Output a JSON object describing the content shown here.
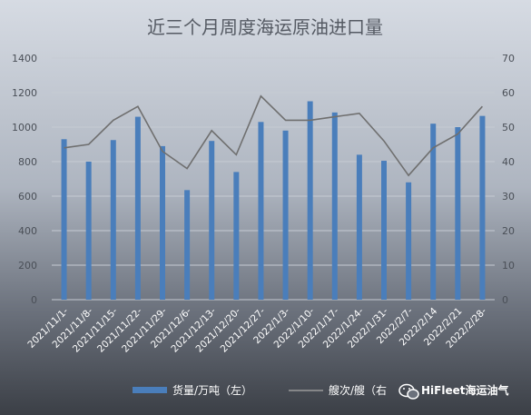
{
  "chart_data": {
    "type": "bar",
    "title": "近三个月周度海运原油进口量",
    "categories": [
      "2021/11/1-",
      "2021/11/8-",
      "2021/11/15-",
      "2021/11/22-",
      "2021/11/29-",
      "2021/12/6-",
      "2021/12/13-",
      "2021/12/20-",
      "2021/12/27-",
      "2022/1/3-",
      "2022/1/10-",
      "2022/1/17-",
      "2022/1/24-",
      "2022/1/31-",
      "2022/2/7-",
      "2022/2/14",
      "2022/2/21",
      "2022/2/28-"
    ],
    "series": [
      {
        "name": "货量/万吨（左）",
        "kind": "bar",
        "axis": "left",
        "color": "#4a7ebb",
        "values": [
          930,
          800,
          925,
          1060,
          890,
          635,
          920,
          740,
          1030,
          980,
          1150,
          1085,
          840,
          805,
          680,
          1020,
          1000,
          1065
        ]
      },
      {
        "name": "艘次/艘（右）",
        "kind": "line",
        "axis": "right",
        "color": "#808080",
        "values": [
          44,
          45,
          52,
          56,
          43,
          38,
          49,
          42,
          59,
          52,
          52,
          53,
          54,
          46,
          36,
          44,
          48,
          56
        ]
      }
    ],
    "y_left": {
      "min": 0,
      "max": 1400,
      "ticks": [
        0,
        200,
        400,
        600,
        800,
        1000,
        1200,
        1400
      ]
    },
    "y_right": {
      "min": 0,
      "max": 70,
      "ticks": [
        0,
        10,
        20,
        30,
        40,
        50,
        60,
        70
      ]
    },
    "grid": true,
    "legend_position": "bottom"
  },
  "legend": {
    "bar_label": "货量/万吨（左）",
    "line_label": "艘次/艘（右",
    "watermark_text": "HiFleet海运油气",
    "watermark_icon": "wechat-icon"
  }
}
